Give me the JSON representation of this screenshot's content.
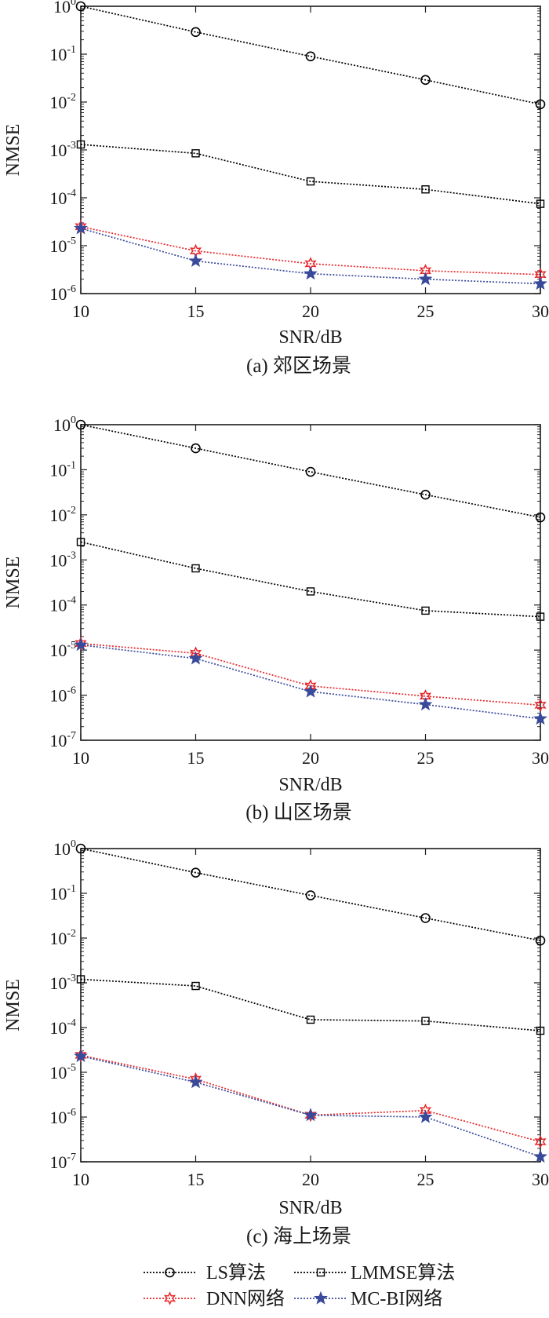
{
  "figure": {
    "legend": [
      {
        "key": "ls",
        "label": "LS算法"
      },
      {
        "key": "lmmse",
        "label": "LMMSE算法"
      },
      {
        "key": "dnn",
        "label": "DNN网络"
      },
      {
        "key": "mcbi",
        "label": "MC-BI网络"
      }
    ],
    "series_style": {
      "ls": {
        "color": "#000000",
        "marker": "circle"
      },
      "lmmse": {
        "color": "#000000",
        "marker": "square"
      },
      "dnn": {
        "color": "#e8262a",
        "marker": "star6"
      },
      "mcbi": {
        "color": "#3a4a9a",
        "marker": "star5"
      }
    }
  },
  "chart_data": [
    {
      "type": "line",
      "caption": "(a) 郊区场景",
      "xlabel": "SNR/dB",
      "ylabel": "NMSE",
      "x": [
        10,
        15,
        20,
        25,
        30
      ],
      "xticks": [
        "10",
        "15",
        "20",
        "25",
        "30"
      ],
      "xlim": [
        10,
        30
      ],
      "yscale": "log",
      "ylim": [
        1e-06,
        1
      ],
      "ytick_exponents": [
        "0",
        "-1",
        "-2",
        "-3",
        "-4",
        "-5",
        "-6"
      ],
      "series": [
        {
          "key": "ls",
          "name": "LS算法",
          "values": [
            1.0,
            0.29,
            0.09,
            0.029,
            0.009
          ]
        },
        {
          "key": "lmmse",
          "name": "LMMSE算法",
          "values": [
            0.0013,
            0.00085,
            0.00022,
            0.00015,
            7.5e-05
          ]
        },
        {
          "key": "dnn",
          "name": "DNN网络",
          "values": [
            2.5e-05,
            7.8e-06,
            4.2e-06,
            3e-06,
            2.5e-06
          ]
        },
        {
          "key": "mcbi",
          "name": "MC-BI网络",
          "values": [
            2.3e-05,
            4.8e-06,
            2.6e-06,
            2e-06,
            1.6e-06
          ]
        }
      ]
    },
    {
      "type": "line",
      "caption": "(b) 山区场景",
      "xlabel": "SNR/dB",
      "ylabel": "NMSE",
      "x": [
        10,
        15,
        20,
        25,
        30
      ],
      "xticks": [
        "10",
        "15",
        "20",
        "25",
        "30"
      ],
      "xlim": [
        10,
        30
      ],
      "yscale": "log",
      "ylim": [
        1e-07,
        1
      ],
      "ytick_exponents": [
        "0",
        "-1",
        "-2",
        "-3",
        "-4",
        "-5",
        "-6",
        "-7"
      ],
      "series": [
        {
          "key": "ls",
          "name": "LS算法",
          "values": [
            1.0,
            0.3,
            0.09,
            0.028,
            0.0088
          ]
        },
        {
          "key": "lmmse",
          "name": "LMMSE算法",
          "values": [
            0.0025,
            0.00065,
            0.0002,
            7.5e-05,
            5.5e-05
          ]
        },
        {
          "key": "dnn",
          "name": "DNN网络",
          "values": [
            1.4e-05,
            8.5e-06,
            1.6e-06,
            9.5e-07,
            6e-07
          ]
        },
        {
          "key": "mcbi",
          "name": "MC-BI网络",
          "values": [
            1.3e-05,
            6.5e-06,
            1.2e-06,
            6.2e-07,
            3e-07
          ]
        }
      ]
    },
    {
      "type": "line",
      "caption": "(c) 海上场景",
      "xlabel": "SNR/dB",
      "ylabel": "NMSE",
      "x": [
        10,
        15,
        20,
        25,
        30
      ],
      "xticks": [
        "10",
        "15",
        "20",
        "25",
        "30"
      ],
      "xlim": [
        10,
        30
      ],
      "yscale": "log",
      "ylim": [
        1e-07,
        1
      ],
      "ytick_exponents": [
        "0",
        "-1",
        "-2",
        "-3",
        "-4",
        "-5",
        "-6",
        "-7"
      ],
      "series": [
        {
          "key": "ls",
          "name": "LS算法",
          "values": [
            1.0,
            0.29,
            0.09,
            0.028,
            0.0088
          ]
        },
        {
          "key": "lmmse",
          "name": "LMMSE算法",
          "values": [
            0.0012,
            0.00085,
            0.00015,
            0.00014,
            8.5e-05
          ]
        },
        {
          "key": "dnn",
          "name": "DNN网络",
          "values": [
            2.4e-05,
            7e-06,
            1.1e-06,
            1.4e-06,
            2.8e-07
          ]
        },
        {
          "key": "mcbi",
          "name": "MC-BI网络",
          "values": [
            2.3e-05,
            6e-06,
            1.1e-06,
            1e-06,
            1.3e-07
          ]
        }
      ]
    }
  ]
}
